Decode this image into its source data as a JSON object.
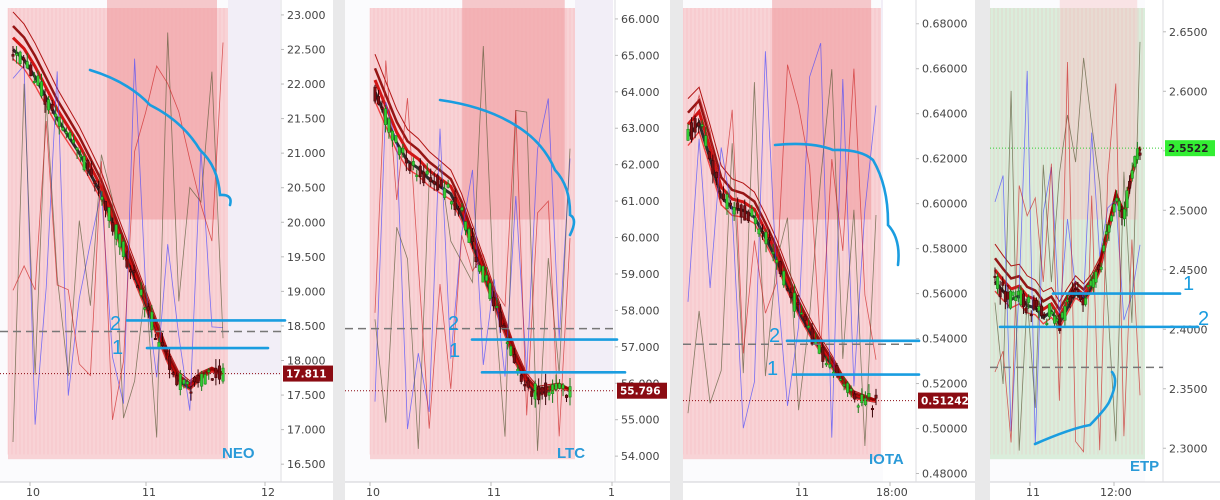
{
  "colors": {
    "background": "#e9e9ea",
    "candle_up": "#33cc33",
    "candle_down": "#7a0e12",
    "annotation": "#1a9de0",
    "price_badge_down": "#8b0b12",
    "price_badge_up": "#33ee33",
    "shade_pink": "#f7c5c8",
    "shade_red": "#ee8a8f",
    "shade_green": "#cfe8cf",
    "shade_purple": "#ece6f3"
  },
  "chart_data": [
    {
      "type": "candlestick",
      "symbol": "NEO",
      "y_ticks": [
        "23.000",
        "22.500",
        "22.000",
        "21.500",
        "21.000",
        "20.500",
        "20.000",
        "19.500",
        "19.000",
        "18.500",
        "18.000",
        "17.500",
        "17.000",
        "16.500"
      ],
      "ylim": [
        16.3,
        23.1
      ],
      "x_ticks": [
        "10",
        "11",
        "12"
      ],
      "last_price": "17.811",
      "last_price_value": 17.811,
      "trend": [
        22.5,
        22.35,
        22.1,
        21.8,
        21.5,
        21.25,
        21.0,
        20.7,
        20.4,
        20.0,
        19.6,
        19.2,
        18.8,
        18.4,
        18.0,
        17.7,
        17.6,
        17.75,
        17.85,
        17.8
      ],
      "annotations": [
        {
          "label": "2",
          "level": 18.58
        },
        {
          "label": "1",
          "level": 18.18
        }
      ],
      "dashed_level": 18.42
    },
    {
      "type": "candlestick",
      "symbol": "LTC",
      "y_ticks": [
        "66.000",
        "65.000",
        "64.000",
        "63.000",
        "62.000",
        "61.000",
        "60.000",
        "59.000",
        "58.000",
        "57.000",
        "56.000",
        "55.000",
        "54.000"
      ],
      "ylim": [
        53.4,
        66.3
      ],
      "x_ticks": [
        "10",
        "11",
        "1"
      ],
      "last_price": "55.796",
      "last_price_value": 55.796,
      "trend": [
        64.0,
        63.3,
        62.6,
        62.1,
        61.9,
        61.6,
        61.4,
        61.2,
        60.6,
        59.8,
        59.0,
        58.2,
        57.4,
        56.6,
        56.0,
        55.7,
        55.8,
        55.9,
        55.8
      ],
      "annotations": [
        {
          "label": "2",
          "level": 57.2
        },
        {
          "label": "1",
          "level": 56.3
        }
      ],
      "dashed_level": 57.5
    },
    {
      "type": "candlestick",
      "symbol": "IOTA",
      "y_ticks": [
        "0.68000",
        "0.66000",
        "0.64000",
        "0.62000",
        "0.60000",
        "0.58000",
        "0.56000",
        "0.54000",
        "0.52000",
        "0.50000",
        "0.48000"
      ],
      "ylim": [
        0.478,
        0.687
      ],
      "x_ticks": [
        "11",
        "18:00"
      ],
      "last_price": "0.51242",
      "last_price_value": 0.51242,
      "trend": [
        0.63,
        0.636,
        0.62,
        0.603,
        0.598,
        0.597,
        0.594,
        0.585,
        0.575,
        0.563,
        0.552,
        0.543,
        0.535,
        0.528,
        0.52,
        0.514,
        0.513,
        0.512
      ],
      "annotations": [
        {
          "label": "2",
          "level": 0.539
        },
        {
          "label": "1",
          "level": 0.524
        }
      ],
      "dashed_level": 0.5375
    },
    {
      "type": "candlestick",
      "symbol": "ETP",
      "y_ticks": [
        "2.6500",
        "2.6000",
        "2.5500",
        "2.5000",
        "2.4500",
        "2.4000",
        "2.3500",
        "2.3000"
      ],
      "ylim": [
        2.275,
        2.67
      ],
      "x_ticks": [
        "11",
        "12:00"
      ],
      "last_price": "2.5522",
      "last_price_value": 2.5522,
      "trend": [
        2.44,
        2.432,
        2.425,
        2.428,
        2.42,
        2.418,
        2.41,
        2.415,
        2.405,
        2.418,
        2.43,
        2.425,
        2.435,
        2.45,
        2.48,
        2.51,
        2.495,
        2.53,
        2.552
      ],
      "annotations": [
        {
          "label": "1",
          "level": 2.43
        },
        {
          "label": "2",
          "level": 2.402
        }
      ],
      "dashed_level": 2.368
    }
  ]
}
